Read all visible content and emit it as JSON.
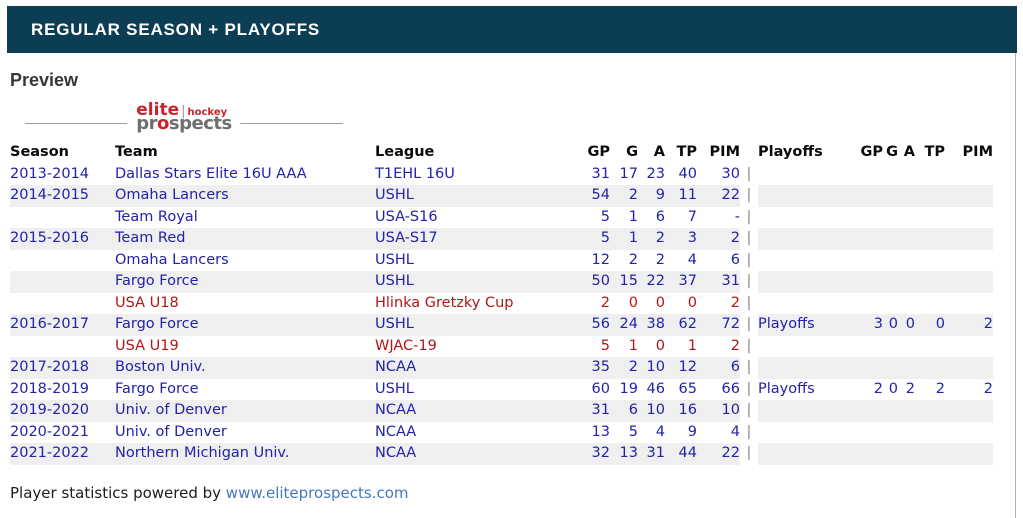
{
  "topbar": {
    "title": "REGULAR SEASON + PLAYOFFS"
  },
  "preview_label": "Preview",
  "logo": {
    "elite": "elite",
    "divider": "|",
    "hockey": "hockey",
    "pr": "pr",
    "o": "o",
    "spects": "spects"
  },
  "table": {
    "separator": "|",
    "header": {
      "season": "Season",
      "team": "Team",
      "league": "League",
      "gp": "GP",
      "g": "G",
      "a": "A",
      "tp": "TP",
      "pim": "PIM",
      "playoffs": "Playoffs",
      "p_gp": "GP",
      "p_g": "G",
      "p_a": "A",
      "p_tp": "TP",
      "p_pim": "PIM"
    },
    "rows": [
      {
        "season": "2013-2014",
        "team": "Dallas Stars Elite 16U AAA",
        "league": "T1EHL 16U",
        "gp": "31",
        "g": "17",
        "a": "23",
        "tp": "40",
        "pim": "30",
        "playoffs": "",
        "p_gp": "",
        "p_g": "",
        "p_a": "",
        "p_tp": "",
        "p_pim": "",
        "color": "blue"
      },
      {
        "season": "2014-2015",
        "team": "Omaha Lancers",
        "league": "USHL",
        "gp": "54",
        "g": "2",
        "a": "9",
        "tp": "11",
        "pim": "22",
        "playoffs": "",
        "p_gp": "",
        "p_g": "",
        "p_a": "",
        "p_tp": "",
        "p_pim": "",
        "color": "blue"
      },
      {
        "season": "",
        "team": "Team Royal",
        "league": "USA-S16",
        "gp": "5",
        "g": "1",
        "a": "6",
        "tp": "7",
        "pim": "-",
        "playoffs": "",
        "p_gp": "",
        "p_g": "",
        "p_a": "",
        "p_tp": "",
        "p_pim": "",
        "color": "blue"
      },
      {
        "season": "2015-2016",
        "team": "Team Red",
        "league": "USA-S17",
        "gp": "5",
        "g": "1",
        "a": "2",
        "tp": "3",
        "pim": "2",
        "playoffs": "",
        "p_gp": "",
        "p_g": "",
        "p_a": "",
        "p_tp": "",
        "p_pim": "",
        "color": "blue"
      },
      {
        "season": "",
        "team": "Omaha Lancers",
        "league": "USHL",
        "gp": "12",
        "g": "2",
        "a": "2",
        "tp": "4",
        "pim": "6",
        "playoffs": "",
        "p_gp": "",
        "p_g": "",
        "p_a": "",
        "p_tp": "",
        "p_pim": "",
        "color": "blue"
      },
      {
        "season": "",
        "team": "Fargo Force",
        "league": "USHL",
        "gp": "50",
        "g": "15",
        "a": "22",
        "tp": "37",
        "pim": "31",
        "playoffs": "",
        "p_gp": "",
        "p_g": "",
        "p_a": "",
        "p_tp": "",
        "p_pim": "",
        "color": "blue"
      },
      {
        "season": "",
        "team": "USA U18",
        "league": "Hlinka Gretzky Cup",
        "gp": "2",
        "g": "0",
        "a": "0",
        "tp": "0",
        "pim": "2",
        "playoffs": "",
        "p_gp": "",
        "p_g": "",
        "p_a": "",
        "p_tp": "",
        "p_pim": "",
        "color": "red"
      },
      {
        "season": "2016-2017",
        "team": "Fargo Force",
        "league": "USHL",
        "gp": "56",
        "g": "24",
        "a": "38",
        "tp": "62",
        "pim": "72",
        "playoffs": "Playoffs",
        "p_gp": "3",
        "p_g": "0",
        "p_a": "0",
        "p_tp": "0",
        "p_pim": "2",
        "color": "blue"
      },
      {
        "season": "",
        "team": "USA U19",
        "league": "WJAC-19",
        "gp": "5",
        "g": "1",
        "a": "0",
        "tp": "1",
        "pim": "2",
        "playoffs": "",
        "p_gp": "",
        "p_g": "",
        "p_a": "",
        "p_tp": "",
        "p_pim": "",
        "color": "red"
      },
      {
        "season": "2017-2018",
        "team": "Boston Univ.",
        "league": "NCAA",
        "gp": "35",
        "g": "2",
        "a": "10",
        "tp": "12",
        "pim": "6",
        "playoffs": "",
        "p_gp": "",
        "p_g": "",
        "p_a": "",
        "p_tp": "",
        "p_pim": "",
        "color": "blue"
      },
      {
        "season": "2018-2019",
        "team": "Fargo Force",
        "league": "USHL",
        "gp": "60",
        "g": "19",
        "a": "46",
        "tp": "65",
        "pim": "66",
        "playoffs": "Playoffs",
        "p_gp": "2",
        "p_g": "0",
        "p_a": "2",
        "p_tp": "2",
        "p_pim": "2",
        "color": "blue"
      },
      {
        "season": "2019-2020",
        "team": "Univ. of Denver",
        "league": "NCAA",
        "gp": "31",
        "g": "6",
        "a": "10",
        "tp": "16",
        "pim": "10",
        "playoffs": "",
        "p_gp": "",
        "p_g": "",
        "p_a": "",
        "p_tp": "",
        "p_pim": "",
        "color": "blue"
      },
      {
        "season": "2020-2021",
        "team": "Univ. of Denver",
        "league": "NCAA",
        "gp": "13",
        "g": "5",
        "a": "4",
        "tp": "9",
        "pim": "4",
        "playoffs": "",
        "p_gp": "",
        "p_g": "",
        "p_a": "",
        "p_tp": "",
        "p_pim": "",
        "color": "blue"
      },
      {
        "season": "2021-2022",
        "team": "Northern Michigan Univ.",
        "league": "NCAA",
        "gp": "32",
        "g": "13",
        "a": "31",
        "tp": "44",
        "pim": "22",
        "playoffs": "",
        "p_gp": "",
        "p_g": "",
        "p_a": "",
        "p_tp": "",
        "p_pim": "",
        "color": "blue"
      }
    ]
  },
  "footer": {
    "text": "Player statistics powered by ",
    "link": "www.eliteprospects.com"
  },
  "colors": {
    "header_bg": "#0b3e54",
    "stat_blue": "#2222aa",
    "national_team_red": "#b31616",
    "link_blue": "#4579be",
    "stripe_gray": "#efefef",
    "brand_red": "#cc2229"
  }
}
